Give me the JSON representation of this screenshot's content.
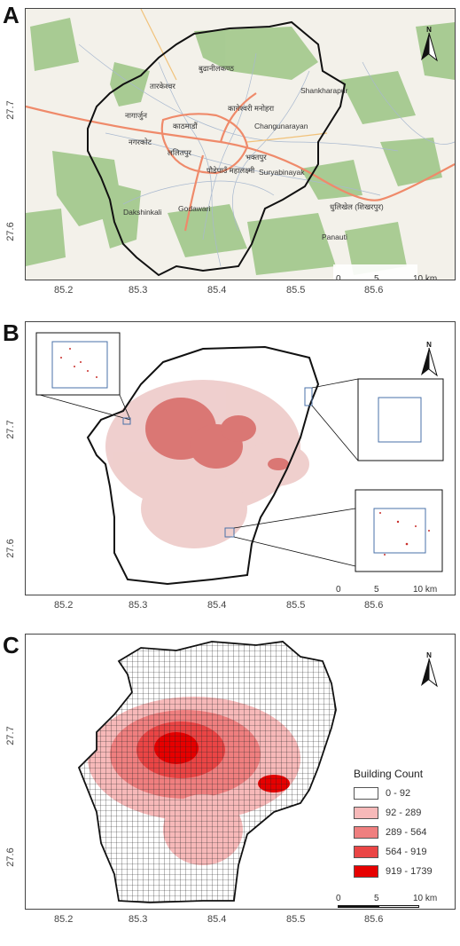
{
  "panels": {
    "a": {
      "label": "A"
    },
    "b": {
      "label": "B"
    },
    "c": {
      "label": "C"
    }
  },
  "axes": {
    "x_ticks": [
      "85.2",
      "85.3",
      "85.4",
      "85.5",
      "85.6"
    ],
    "y_ticks": [
      "27.7",
      "27.6"
    ]
  },
  "north_arrow": {
    "letter": "N",
    "icon": "north-arrow-icon"
  },
  "scale_bar": {
    "labels": [
      "0",
      "5",
      "10 km"
    ]
  },
  "place_names": [
    "बुढानीलकण्ठ",
    "तारकेश्वर",
    "Shankharapur",
    "कागेश्वरी मनोहरा",
    "नागार्जुन",
    "काठमाडौं",
    "नगरकोट",
    "Changunarayan",
    "ललितपुर",
    "भक्तपुर",
    "पौडेपाउँ महालक्ष्मी",
    "Suryabinayak",
    "Dakshinkali",
    "Godawari",
    "धुलिखेल (शिखरपुर)",
    "Panauti"
  ],
  "legend": {
    "title": "Building Count",
    "classes": [
      {
        "label": "0 - 92",
        "color": "#ffffff"
      },
      {
        "label": "92 - 289",
        "color": "#f7b9b9"
      },
      {
        "label": "289 - 564",
        "color": "#ef7f7f"
      },
      {
        "label": "564 - 919",
        "color": "#ea4545"
      },
      {
        "label": "919 - 1739",
        "color": "#e60000"
      }
    ]
  },
  "colors": {
    "boundary": "#111111",
    "forest": "#9cc585",
    "road": "#ef8a6a",
    "building": "#c9302c",
    "inset_frame": "#4a72a8"
  }
}
